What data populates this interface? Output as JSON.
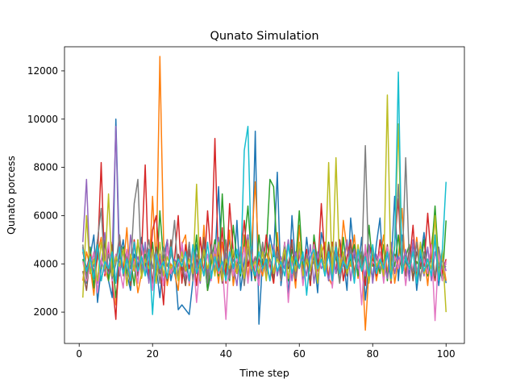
{
  "chart_data": {
    "type": "line",
    "title": "Qunato Simulation",
    "xlabel": "Time step",
    "ylabel": "Qunato porcess",
    "xlim": [
      -4,
      105
    ],
    "ylim": [
      700,
      13000
    ],
    "xticks": [
      0,
      20,
      40,
      60,
      80,
      100
    ],
    "yticks": [
      2000,
      4000,
      6000,
      8000,
      10000,
      12000
    ],
    "grid": false,
    "legend": "none",
    "x_start": 1,
    "x_end": 100,
    "series": [
      {
        "color": "#1f77b4",
        "values": [
          4700,
          3200,
          4300,
          5200,
          2400,
          3800,
          4900,
          3300,
          2600,
          10000,
          4200,
          5000,
          3600,
          2900,
          4400,
          3800,
          5100,
          4000,
          3300,
          4700,
          3900,
          2600,
          4200,
          5000,
          3300,
          4100,
          2100,
          2300,
          2100,
          1900,
          3300,
          4800,
          3900,
          4500,
          2900,
          3600,
          4200,
          7200,
          3400,
          4300,
          5000,
          3200,
          5800,
          2900,
          4100,
          5200,
          3300,
          9500,
          1500,
          4200,
          3600,
          5200,
          4300,
          7800,
          3100,
          4400,
          2700,
          6000,
          3900,
          4600,
          3200,
          5100,
          3800,
          4300,
          2800,
          5300,
          4600,
          3300,
          4900,
          3600,
          5000,
          4200,
          2900,
          5900,
          4300,
          3600,
          5100,
          2500,
          4000,
          3400,
          4800,
          5900,
          3300,
          4500,
          3800,
          6800,
          3300,
          5200,
          4100,
          3600,
          4900,
          2900,
          4200,
          5300,
          3600,
          4400,
          5000,
          3100,
          4300,
          3200
        ]
      },
      {
        "color": "#ff7f0e",
        "values": [
          3300,
          4500,
          3900,
          2700,
          4400,
          5100,
          3800,
          3300,
          4900,
          2300,
          4000,
          3800,
          5500,
          3100,
          4200,
          2800,
          3600,
          4700,
          3400,
          6800,
          3800,
          12600,
          5000,
          3100,
          4000,
          3600,
          2900,
          4800,
          5200,
          3100,
          4600,
          3900,
          3300,
          5600,
          2900,
          4000,
          4400,
          3200,
          4900,
          3700,
          5400,
          3100,
          4100,
          3600,
          5200,
          3400,
          4800,
          7400,
          4000,
          3500,
          4500,
          3900,
          3200,
          5300,
          3400,
          4700,
          3900,
          4300,
          3000,
          5600,
          3800,
          4100,
          3200,
          5000,
          3900,
          4400,
          4900,
          3400,
          3100,
          4900,
          3400,
          5800,
          4600,
          3900,
          5200,
          3400,
          4400,
          1250,
          3800,
          4600,
          3300,
          4100,
          5200,
          3600,
          4800,
          3200,
          4200,
          6300,
          3500,
          4600,
          3300,
          5100,
          3900,
          4400,
          3100,
          4800,
          5900,
          3700,
          4300,
          3300
        ]
      },
      {
        "color": "#2ca02c",
        "values": [
          4200,
          3500,
          4700,
          3000,
          4600,
          3800,
          5000,
          3300,
          4300,
          2600,
          3900,
          4700,
          3600,
          4200,
          3100,
          5000,
          3800,
          4400,
          3500,
          4900,
          3200,
          6200,
          4100,
          3400,
          4800,
          3600,
          4300,
          3900,
          3100,
          4600,
          3800,
          5200,
          3300,
          4500,
          2900,
          4100,
          5000,
          3500,
          6900,
          3900,
          3300,
          5600,
          4200,
          3500,
          4800,
          6400,
          4100,
          3300,
          5200,
          3800,
          4500,
          7500,
          7200,
          4300,
          3600,
          4900,
          3300,
          4600,
          4000,
          6200,
          3800,
          4400,
          3100,
          5200,
          4000,
          4600,
          3500,
          4900,
          3800,
          4300,
          3200,
          5100,
          3600,
          4200,
          4800,
          3500,
          4500,
          3200,
          5600,
          3900,
          4300,
          3600,
          4800,
          3300,
          4600,
          3900,
          5200,
          3600,
          4300,
          4800,
          3400,
          4100,
          3800,
          5000,
          3500,
          4400,
          6400,
          4000,
          3300,
          5800
        ]
      },
      {
        "color": "#d62728",
        "values": [
          4500,
          3800,
          4400,
          3600,
          4200,
          8200,
          3500,
          4700,
          3300,
          1700,
          5200,
          3600,
          4600,
          3200,
          5000,
          3800,
          4400,
          8100,
          3300,
          5400,
          6000,
          4000,
          2300,
          5000,
          3600,
          4200,
          6000,
          3200,
          4800,
          3800,
          4400,
          3100,
          5100,
          3500,
          6200,
          4200,
          9200,
          3700,
          5500,
          3200,
          6500,
          4500,
          3600,
          4300,
          5800,
          3900,
          4600,
          3400,
          4200,
          3800,
          5200,
          4000,
          3200,
          4700,
          3600,
          4400,
          3900,
          5000,
          3300,
          4400,
          3800,
          4600,
          3100,
          4900,
          3700,
          6500,
          4100,
          3400,
          4900,
          3600,
          5000,
          3300,
          4300,
          5000,
          3600,
          4700,
          3900,
          3100,
          4800,
          4200,
          3500,
          5000,
          3800,
          4500,
          3200,
          4900,
          6700,
          3600,
          4300,
          4000,
          5600,
          3400,
          4600,
          3900,
          6100,
          4100,
          3300,
          4500,
          3600,
          4200
        ]
      },
      {
        "color": "#9467bd",
        "values": [
          4900,
          7500,
          3600,
          4500,
          3200,
          4000,
          5300,
          3600,
          4400,
          9700,
          3500,
          4600,
          3100,
          5200,
          3800,
          4300,
          3600,
          4900,
          3200,
          4600,
          3800,
          4400,
          3100,
          5000,
          3600,
          4200,
          3900,
          4700,
          3300,
          4500,
          3700,
          4100,
          3200,
          4900,
          3600,
          4300,
          3800,
          5100,
          3400,
          4400,
          3700,
          4000,
          3100,
          4700,
          3500,
          5200,
          3800,
          4300,
          3400,
          4600,
          4000,
          3300,
          4800,
          3500,
          4300,
          3800,
          5000,
          3300,
          4500,
          3900,
          4200,
          3500,
          4800,
          3200,
          4500,
          3800,
          4100,
          3300,
          4700,
          3600,
          4400,
          3900,
          5000,
          3300,
          4600,
          3800,
          4200,
          3500,
          4800,
          3200,
          4400,
          3800,
          4100,
          3400,
          4900,
          3600,
          4300,
          3900,
          4600,
          3300,
          5000,
          3700,
          4200,
          3500,
          4700,
          3300,
          4500,
          3900,
          4300,
          3700
        ]
      },
      {
        "color": "#8c564b",
        "values": [
          3700,
          2900,
          4300,
          3500,
          5000,
          3300,
          4100,
          3700,
          4800,
          3200,
          4500,
          3600,
          4200,
          3100,
          4900,
          3500,
          4300,
          3800,
          4600,
          3200,
          4700,
          3600,
          4200,
          3300,
          5000,
          3700,
          4400,
          3900,
          3100,
          4600,
          3500,
          4200,
          3800,
          5100,
          3300,
          4500,
          3600,
          4300,
          3200,
          4800,
          3600,
          4400,
          3800,
          4100,
          3300,
          4900,
          3700,
          4300,
          3500,
          4600,
          3900,
          4200,
          3400,
          4700,
          3700,
          4300,
          3800,
          4900,
          3400,
          4500,
          3600,
          4200,
          3300,
          4700,
          3900,
          4400,
          3600,
          4800,
          3200,
          4500,
          3800,
          4100,
          3500,
          4900,
          3600,
          4300,
          3900,
          4600,
          3300,
          4500,
          3700,
          4200,
          3500,
          4800,
          3400,
          4400,
          3800,
          4200,
          3500,
          4700,
          3300,
          4500,
          3900,
          4300,
          3600,
          4800,
          3400,
          4400,
          3800,
          4000
        ]
      },
      {
        "color": "#e377c2",
        "values": [
          4100,
          3300,
          3900,
          4500,
          2800,
          4200,
          3600,
          4900,
          3300,
          4400,
          3800,
          3000,
          4600,
          3500,
          4100,
          3200,
          4800,
          3700,
          4300,
          2900,
          4500,
          3900,
          3100,
          4700,
          3600,
          4000,
          3400,
          4900,
          3800,
          3200,
          4500,
          2400,
          4100,
          3700,
          4400,
          3300,
          4800,
          3600,
          4000,
          1700,
          4600,
          3500,
          4200,
          3800,
          4700,
          3200,
          4400,
          3900,
          3100,
          4800,
          3500,
          4100,
          3700,
          4500,
          3300,
          4900,
          2400,
          4200,
          3800,
          4600,
          3100,
          4300,
          3700,
          4800,
          3400,
          4200,
          3600,
          4500,
          3000,
          4700,
          3500,
          4100,
          3800,
          4600,
          3300,
          4400,
          2300,
          4800,
          3600,
          4100,
          3900,
          4500,
          3200,
          4700,
          3500,
          4300,
          3800,
          4600,
          3100,
          4400,
          3700,
          4900,
          3400,
          4200,
          3600,
          4800,
          1650,
          4500,
          3300,
          4100
        ]
      },
      {
        "color": "#7f7f7f",
        "values": [
          4800,
          3400,
          4200,
          3900,
          5000,
          6300,
          3700,
          4400,
          3400,
          4000,
          5200,
          3500,
          4300,
          3800,
          6500,
          7500,
          3600,
          4100,
          5000,
          3800,
          4500,
          3200,
          4700,
          3900,
          4300,
          5800,
          3500,
          4200,
          3700,
          4900,
          3300,
          4400,
          3900,
          4600,
          3200,
          4800,
          3600,
          4300,
          3500,
          5000,
          3400,
          4200,
          3800,
          4500,
          3100,
          4600,
          3700,
          4300,
          3500,
          4900,
          3800,
          4200,
          3600,
          4500,
          3300,
          4700,
          3900,
          4200,
          3400,
          4800,
          3600,
          4400,
          3800,
          4100,
          3300,
          4600,
          3700,
          4400,
          3500,
          4900,
          3200,
          4300,
          3800,
          4600,
          3500,
          4200,
          3900,
          8900,
          3400,
          4700,
          3600,
          4200,
          3800,
          4500,
          3300,
          4800,
          7300,
          3600,
          8400,
          4000,
          3700,
          4900,
          3300,
          4500,
          3900,
          4200,
          3500,
          4700,
          3800,
          3900
        ]
      },
      {
        "color": "#bcbd22",
        "values": [
          2600,
          6000,
          3600,
          4200,
          3300,
          4900,
          3800,
          6900,
          3500,
          4300,
          3900,
          4600,
          3100,
          4400,
          3700,
          5000,
          3400,
          4200,
          3800,
          4600,
          3200,
          4900,
          3500,
          4300,
          3800,
          4100,
          3300,
          4500,
          3700,
          4200,
          3600,
          7300,
          3300,
          4600,
          3800,
          4400,
          3500,
          4900,
          3300,
          4200,
          3800,
          4600,
          3600,
          4300,
          3400,
          5000,
          3800,
          4100,
          3600,
          4500,
          3300,
          4800,
          3600,
          4200,
          3900,
          4600,
          3400,
          4300,
          3700,
          4900,
          3500,
          4200,
          3700,
          4500,
          3200,
          4800,
          3600,
          8200,
          3400,
          8400,
          3800,
          4500,
          3600,
          4100,
          3400,
          4800,
          3700,
          4300,
          3200,
          4600,
          3900,
          4200,
          3500,
          11000,
          3300,
          4800,
          9800,
          3600,
          4300,
          3800,
          4500,
          3300,
          4900,
          3600,
          4200,
          3800,
          6000,
          3500,
          4600,
          2000
        ]
      },
      {
        "color": "#17becf",
        "values": [
          4600,
          3700,
          4300,
          3400,
          4800,
          3300,
          4100,
          3800,
          4500,
          3200,
          4700,
          3600,
          4200,
          3300,
          4900,
          3700,
          4300,
          3500,
          4600,
          1900,
          4400,
          3800,
          4100,
          3400,
          4700,
          3600,
          4200,
          3900,
          4500,
          3300,
          4800,
          3600,
          4200,
          3500,
          4900,
          3400,
          4300,
          3700,
          4100,
          3300,
          4500,
          3800,
          4600,
          3600,
          8700,
          9700,
          4000,
          3500,
          4500,
          3800,
          4200,
          3300,
          4600,
          3700,
          4100,
          3500,
          4800,
          3600,
          4300,
          3800,
          4500,
          2700,
          4300,
          4600,
          3800,
          4200,
          3500,
          4500,
          3300,
          4700,
          3600,
          4100,
          3800,
          4400,
          3200,
          4600,
          3700,
          4300,
          3500,
          4800,
          3600,
          4200,
          3800,
          4500,
          3400,
          4700,
          11950,
          3600,
          4300,
          3800,
          4500,
          3200,
          4600,
          3700,
          4200,
          3500,
          5200,
          3300,
          4600,
          7400
        ]
      }
    ]
  }
}
